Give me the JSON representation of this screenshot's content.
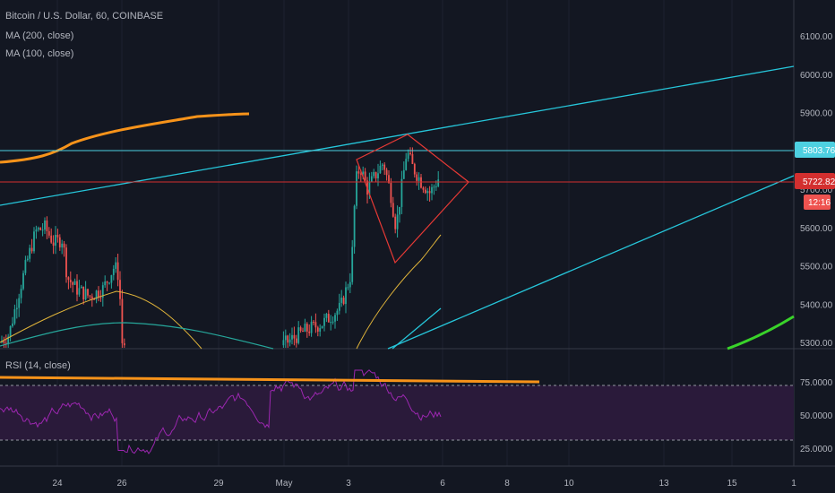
{
  "header": {
    "symbol_line": "Bitcoin / U.S. Dollar, 60, COINBASE",
    "ma200_label": "MA (200, close)",
    "ma100_label": "MA (100, close)"
  },
  "rsi_panel": {
    "label": "RSI (14, close)"
  },
  "colors": {
    "background": "#131722",
    "candle_up": "#26a69a",
    "candle_down": "#ef5350",
    "ma200": "#f7931a",
    "ma100": "#e0b43a",
    "trendline": "#26c6da",
    "resistance": "#4dd0e1",
    "support": "#d32f2f",
    "diamond": "#e53935",
    "rsi_line": "#9c27b0",
    "rsi_band": "#2a1a3a",
    "green_curve": "#39d32a"
  },
  "price_labels": {
    "resistance": "5803.76",
    "current": "5722.82",
    "countdown": "12:16"
  },
  "chart_data": [
    {
      "type": "candlestick",
      "title": "Bitcoin / U.S. Dollar, 60, COINBASE",
      "y_ticks": [
        "6100.00",
        "6000.00",
        "5900.00",
        "5700.00",
        "5600.00",
        "5500.00",
        "5400.00",
        "5300.00"
      ],
      "x_ticks": [
        "24",
        "26",
        "29",
        "May",
        "3",
        "6",
        "8",
        "10",
        "13",
        "15",
        "1"
      ],
      "ylim": [
        5290,
        6160
      ],
      "horizontal_levels": {
        "resistance": 5803.76,
        "current": 5722.82
      },
      "series": [
        {
          "name": "MA (200, close)"
        },
        {
          "name": "MA (100, close)"
        }
      ]
    },
    {
      "type": "line",
      "title": "RSI (14, close)",
      "y_ticks": [
        "75.0000",
        "50.0000",
        "25.0000"
      ],
      "ylim": [
        15,
        90
      ],
      "bands": [
        70,
        30
      ]
    }
  ]
}
